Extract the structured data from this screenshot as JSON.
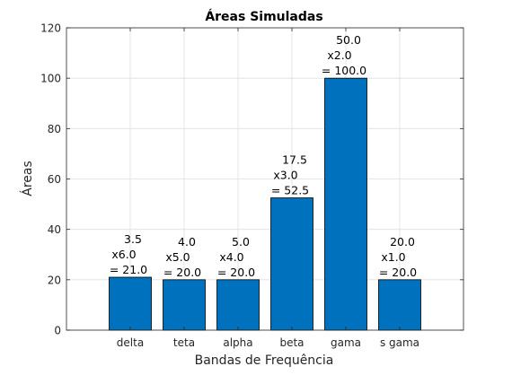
{
  "chart_data": {
    "type": "bar",
    "title": "Áreas Simuladas",
    "xlabel": "Bandas de Frequência",
    "ylabel": "Áreas",
    "categories": [
      "delta",
      "teta",
      "alpha",
      "beta",
      "gama",
      "s gama"
    ],
    "values": [
      21,
      20,
      20,
      52.5,
      100,
      20
    ],
    "ylim": [
      0,
      120
    ],
    "yticks": [
      0,
      20,
      40,
      60,
      80,
      100,
      120
    ],
    "ytick_labels": [
      "0",
      "20",
      "40",
      "60",
      "80",
      "100",
      "120"
    ],
    "grid": true,
    "legend": "none",
    "bar_color": "#0072BD",
    "annotations": [
      {
        "category": "delta",
        "lines": [
          "3.5",
          "x6.0",
          "= 21.0"
        ]
      },
      {
        "category": "teta",
        "lines": [
          "4.0",
          "x5.0",
          "= 20.0"
        ]
      },
      {
        "category": "alpha",
        "lines": [
          "5.0",
          "x4.0",
          "= 20.0"
        ]
      },
      {
        "category": "beta",
        "lines": [
          "17.5",
          "x3.0",
          "= 52.5"
        ]
      },
      {
        "category": "gama",
        "lines": [
          "50.0",
          "x2.0",
          "= 100.0"
        ]
      },
      {
        "category": "s gama",
        "lines": [
          "20.0",
          "x1.0",
          "= 20.0"
        ]
      }
    ]
  }
}
